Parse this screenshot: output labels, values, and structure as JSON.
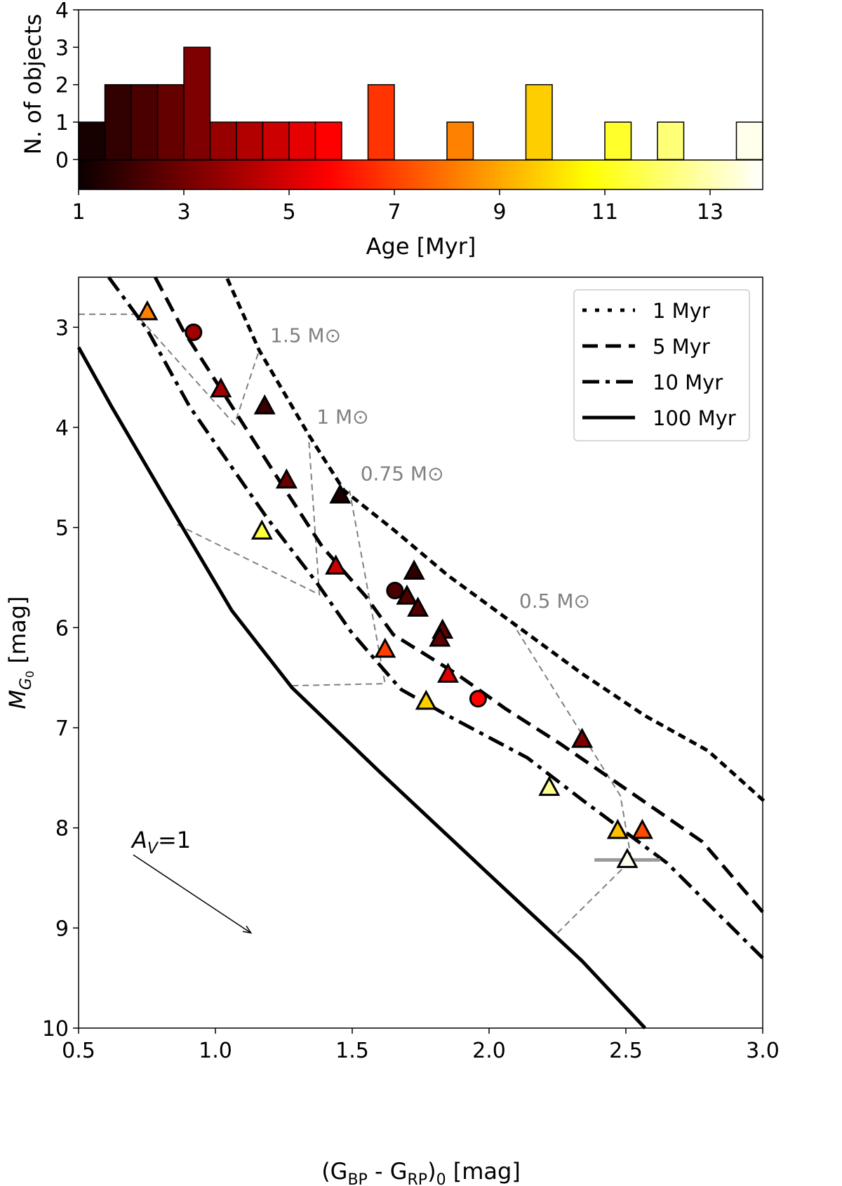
{
  "chart_data": [
    {
      "type": "bar",
      "xlabel": "Age [Myr]",
      "ylabel": "N. of objects",
      "xlim": [
        1,
        14
      ],
      "ylim": [
        -0.8,
        4
      ],
      "xticks": [
        1,
        3,
        5,
        7,
        9,
        11,
        13
      ],
      "yticks": [
        0,
        1,
        2,
        3,
        4
      ],
      "bin_width": 0.5,
      "colormap": "hot",
      "colorbar": "below zero, spanning 1 to 14 Myr",
      "bins": [
        {
          "start": 1.0,
          "count": 1
        },
        {
          "start": 1.5,
          "count": 2
        },
        {
          "start": 2.0,
          "count": 2
        },
        {
          "start": 2.5,
          "count": 2
        },
        {
          "start": 3.0,
          "count": 3
        },
        {
          "start": 3.5,
          "count": 1
        },
        {
          "start": 4.0,
          "count": 1
        },
        {
          "start": 4.5,
          "count": 1
        },
        {
          "start": 5.0,
          "count": 1
        },
        {
          "start": 5.5,
          "count": 1
        },
        {
          "start": 6.5,
          "count": 2
        },
        {
          "start": 8.0,
          "count": 1
        },
        {
          "start": 9.5,
          "count": 2
        },
        {
          "start": 11.0,
          "count": 1
        },
        {
          "start": 12.0,
          "count": 1
        },
        {
          "start": 13.5,
          "count": 1
        }
      ]
    },
    {
      "type": "scatter",
      "xlabel": {
        "main": "(G",
        "sub1": "BP",
        "mid": " - G",
        "sub2": "RP",
        "end": ")",
        "sub3": "0",
        "unit": " [mag]"
      },
      "ylabel": {
        "main": "M",
        "sub": "G",
        "subsub": "0",
        "unit": " [mag]"
      },
      "xlim": [
        0.5,
        3.0
      ],
      "ylim": [
        10,
        2.5
      ],
      "y_inverted": true,
      "xticks": [
        "0.5",
        "1.0",
        "1.5",
        "2.0",
        "2.5",
        "3.0"
      ],
      "yticks": [
        "3",
        "4",
        "5",
        "6",
        "7",
        "8",
        "9",
        "10"
      ],
      "legend_position": "top-right",
      "isochrones": [
        {
          "name": "1 Myr",
          "style": "dotted",
          "points": [
            [
              1.046,
              2.53
            ],
            [
              1.16,
              3.23
            ],
            [
              1.34,
              4.07
            ],
            [
              1.47,
              4.63
            ],
            [
              1.65,
              5.02
            ],
            [
              1.85,
              5.48
            ],
            [
              2.06,
              5.9
            ],
            [
              2.34,
              6.46
            ],
            [
              2.57,
              6.88
            ],
            [
              2.8,
              7.23
            ],
            [
              3.0,
              7.72
            ]
          ]
        },
        {
          "name": "5 Myr",
          "style": "dashed",
          "points": [
            [
              0.78,
              2.5
            ],
            [
              0.88,
              3.02
            ],
            [
              1.06,
              3.79
            ],
            [
              1.24,
              4.56
            ],
            [
              1.39,
              5.19
            ],
            [
              1.55,
              5.69
            ],
            [
              1.65,
              6.07
            ],
            [
              1.88,
              6.46
            ],
            [
              2.06,
              6.81
            ],
            [
              2.26,
              7.16
            ],
            [
              2.52,
              7.65
            ],
            [
              2.78,
              8.14
            ],
            [
              3.0,
              8.84
            ]
          ]
        },
        {
          "name": "10 Myr",
          "style": "dashdot",
          "points": [
            [
              0.61,
              2.5
            ],
            [
              0.75,
              3.02
            ],
            [
              0.905,
              3.79
            ],
            [
              1.19,
              4.91
            ],
            [
              1.37,
              5.55
            ],
            [
              1.495,
              6.04
            ],
            [
              1.65,
              6.53
            ],
            [
              1.68,
              6.62
            ],
            [
              1.85,
              6.88
            ],
            [
              2.14,
              7.3
            ],
            [
              2.34,
              7.72
            ],
            [
              2.65,
              8.35
            ],
            [
              3.0,
              9.3
            ]
          ]
        },
        {
          "name": "100 Myr",
          "style": "solid",
          "points": [
            [
              0.5,
              3.2
            ],
            [
              0.62,
              3.79
            ],
            [
              0.8,
              4.63
            ],
            [
              1.06,
              5.83
            ],
            [
              1.28,
              6.6
            ],
            [
              1.6,
              7.44
            ],
            [
              2.01,
              8.49
            ],
            [
              2.34,
              9.33
            ],
            [
              2.57,
              10.0
            ]
          ]
        }
      ],
      "mass_tracks": [
        {
          "label": "1.5 M⊙",
          "label_at": [
            1.2,
            3.15
          ],
          "points": [
            [
              0.5,
              2.87
            ],
            [
              0.71,
              2.87
            ],
            [
              1.07,
              3.97
            ],
            [
              1.16,
              3.23
            ]
          ]
        },
        {
          "label": "1 M⊙",
          "label_at": [
            1.37,
            3.96
          ],
          "points": [
            [
              0.86,
              4.97
            ],
            [
              1.38,
              5.67
            ],
            [
              1.34,
              4.07
            ]
          ]
        },
        {
          "label": "0.75 M⊙",
          "label_at": [
            1.53,
            4.53
          ],
          "points": [
            [
              1.28,
              6.58
            ],
            [
              1.62,
              6.56
            ],
            [
              1.49,
              4.63
            ]
          ]
        },
        {
          "label": "0.5 M⊙",
          "label_at": [
            2.11,
            5.8
          ],
          "points": [
            [
              2.25,
              9.05
            ],
            [
              2.52,
              8.32
            ],
            [
              2.48,
              7.68
            ],
            [
              2.08,
              5.93
            ]
          ]
        }
      ],
      "stars": [
        {
          "x": 0.751,
          "y": 2.85,
          "marker": "triangle",
          "color": "#ff8000"
        },
        {
          "x": 0.92,
          "y": 3.05,
          "marker": "circle",
          "color": "#a00000"
        },
        {
          "x": 1.02,
          "y": 3.62,
          "marker": "triangle",
          "color": "#a00000"
        },
        {
          "x": 1.18,
          "y": 3.79,
          "marker": "triangle",
          "color": "#3a0000"
        },
        {
          "x": 1.26,
          "y": 4.53,
          "marker": "triangle",
          "color": "#6a0000"
        },
        {
          "x": 1.456,
          "y": 4.68,
          "marker": "triangle",
          "color": "#1a0000"
        },
        {
          "x": 1.17,
          "y": 5.04,
          "marker": "triangle",
          "color": "#ffff40"
        },
        {
          "x": 1.44,
          "y": 5.39,
          "marker": "triangle",
          "color": "#cc0000"
        },
        {
          "x": 1.656,
          "y": 5.63,
          "marker": "circle",
          "color": "#4a0000"
        },
        {
          "x": 1.726,
          "y": 5.44,
          "marker": "triangle",
          "color": "#300000"
        },
        {
          "x": 1.7,
          "y": 5.69,
          "marker": "triangle",
          "color": "#500000"
        },
        {
          "x": 1.74,
          "y": 5.81,
          "marker": "triangle",
          "color": "#500000"
        },
        {
          "x": 1.83,
          "y": 6.03,
          "marker": "triangle",
          "color": "#600000"
        },
        {
          "x": 1.82,
          "y": 6.11,
          "marker": "triangle",
          "color": "#600000"
        },
        {
          "x": 1.62,
          "y": 6.22,
          "marker": "triangle",
          "color": "#ff4000"
        },
        {
          "x": 1.85,
          "y": 6.47,
          "marker": "triangle",
          "color": "#e00000"
        },
        {
          "x": 1.96,
          "y": 6.71,
          "marker": "circle",
          "color": "#ff0000"
        },
        {
          "x": 1.77,
          "y": 6.74,
          "marker": "triangle",
          "color": "#ffd000"
        },
        {
          "x": 2.34,
          "y": 7.12,
          "marker": "triangle",
          "color": "#800000"
        },
        {
          "x": 2.22,
          "y": 7.6,
          "marker": "triangle",
          "color": "#ffff90"
        },
        {
          "x": 2.47,
          "y": 8.03,
          "marker": "triangle",
          "color": "#ffc000"
        },
        {
          "x": 2.56,
          "y": 8.03,
          "marker": "triangle",
          "color": "#ff4800"
        },
        {
          "x": 2.505,
          "y": 8.32,
          "marker": "triangle",
          "color": "#fffff0",
          "xerr": 0.12
        }
      ],
      "extinction_vector": {
        "label_main": "A",
        "label_sub": "V",
        "label_end": "=1",
        "from": [
          0.7,
          8.27
        ],
        "to": [
          1.13,
          9.05
        ]
      }
    }
  ]
}
